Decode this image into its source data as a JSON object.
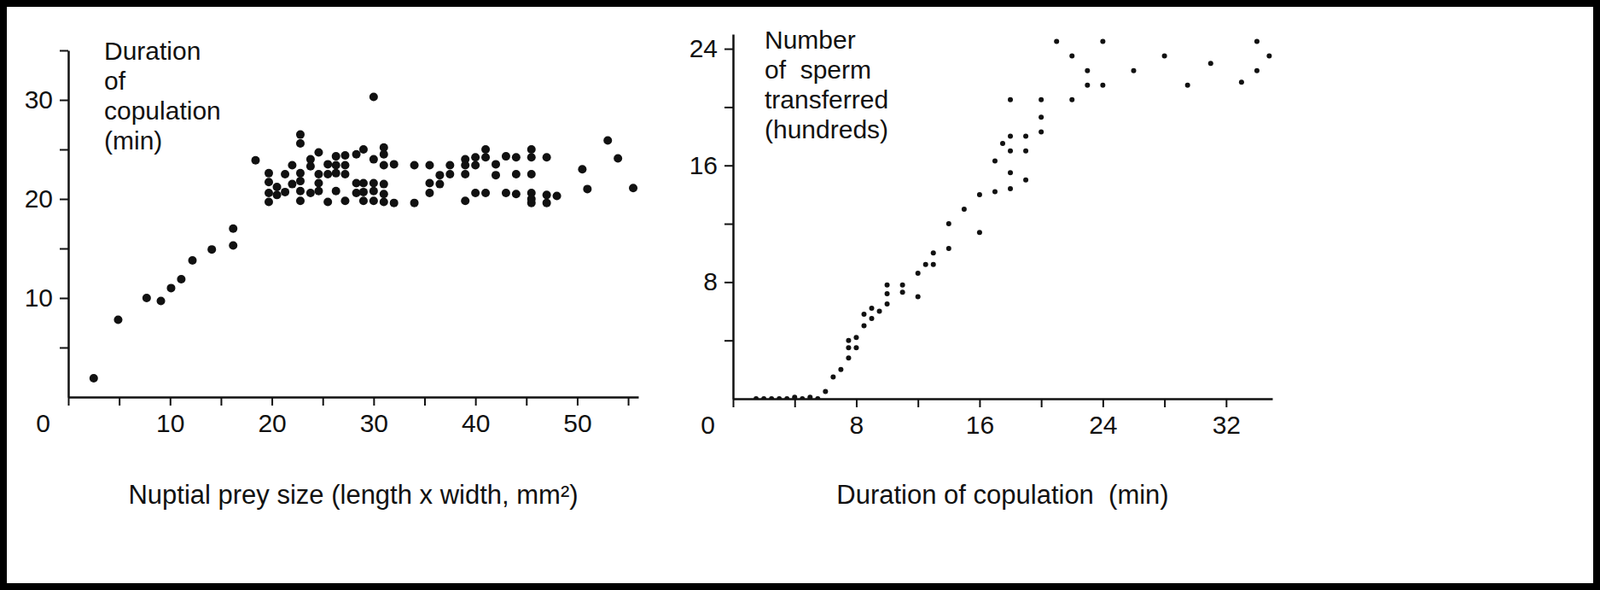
{
  "chart_data": [
    {
      "type": "scatter",
      "ylabel": [
        "Duration",
        "of",
        "copulation",
        "(min)"
      ],
      "xlabel": "Nuptial prey size (length x width, mm²)",
      "xlim": [
        0,
        56
      ],
      "xticks": [
        0,
        10,
        20,
        30,
        40,
        50
      ],
      "xminor": [
        5,
        15,
        25,
        35,
        45,
        55
      ],
      "ylim": [
        0,
        35
      ],
      "yticks": [
        10,
        20,
        30
      ],
      "yminor": [
        5,
        15,
        25,
        35
      ],
      "color": "#111111",
      "marker": "circle",
      "x": [
        2.5,
        4.9,
        7.7,
        9.1,
        10.1,
        11.1,
        12.2,
        14.1,
        16.2,
        16.2,
        18.4,
        19.7,
        19.7,
        19.7,
        19.7,
        20.5,
        20.5,
        21.3,
        21.3,
        22.0,
        22.0,
        22.8,
        22.8,
        22.8,
        22.8,
        22.8,
        22.8,
        23.8,
        23.8,
        23.8,
        24.6,
        24.6,
        24.6,
        24.6,
        25.5,
        25.5,
        25.5,
        26.3,
        26.3,
        26.3,
        26.3,
        27.2,
        27.2,
        27.2,
        27.2,
        28.3,
        28.3,
        28.3,
        29.0,
        29.0,
        29.0,
        29.0,
        30.0,
        30.0,
        30.0,
        30.0,
        30.0,
        31.0,
        31.0,
        31.0,
        31.0,
        31.0,
        31.0,
        32.0,
        32.0,
        34.0,
        34.0,
        35.5,
        35.5,
        35.5,
        36.5,
        36.5,
        37.5,
        37.5,
        39.0,
        39.0,
        39.0,
        39.0,
        40.0,
        40.0,
        40.0,
        41.0,
        41.0,
        41.0,
        42.0,
        42.0,
        43.0,
        43.0,
        44.0,
        44.0,
        44.0,
        45.5,
        45.5,
        45.5,
        45.5,
        45.5,
        45.5,
        47.0,
        47.0,
        47.0,
        48.0,
        50.5,
        51.0,
        53.0,
        54.0,
        55.5
      ],
      "values": [
        1.9,
        7.8,
        10.0,
        9.7,
        11.0,
        11.9,
        13.8,
        14.9,
        15.3,
        17.0,
        23.9,
        22.6,
        21.7,
        20.6,
        19.7,
        21.2,
        20.4,
        22.5,
        20.7,
        23.4,
        21.5,
        26.5,
        25.6,
        22.6,
        21.8,
        20.8,
        19.8,
        24.0,
        23.3,
        20.6,
        24.7,
        22.5,
        21.6,
        20.8,
        23.5,
        22.5,
        19.7,
        24.3,
        23.4,
        22.6,
        20.8,
        24.4,
        23.4,
        22.5,
        19.8,
        24.5,
        21.6,
        20.6,
        25.0,
        21.6,
        20.7,
        19.8,
        30.3,
        24.0,
        21.6,
        20.8,
        19.8,
        25.2,
        24.5,
        23.4,
        21.5,
        20.5,
        19.7,
        23.5,
        19.6,
        23.4,
        19.6,
        21.6,
        20.6,
        23.4,
        21.5,
        22.4,
        23.4,
        22.5,
        24.0,
        23.4,
        22.5,
        19.8,
        24.2,
        23.4,
        20.6,
        25.0,
        24.2,
        20.6,
        23.5,
        22.4,
        24.3,
        20.6,
        24.2,
        22.5,
        20.5,
        25.0,
        24.2,
        22.5,
        20.6,
        19.6,
        20.0,
        24.2,
        19.6,
        20.4,
        20.3,
        23.0,
        21.0,
        25.9,
        24.1,
        21.1
      ]
    },
    {
      "type": "scatter",
      "ylabel": [
        "Number",
        "of  sperm",
        "transferred",
        "(hundreds)"
      ],
      "xlabel": "Duration of copulation  (min)",
      "xlim": [
        0,
        35
      ],
      "xticks": [
        0,
        8,
        16,
        24,
        32
      ],
      "xminor": [
        4,
        12,
        20,
        28
      ],
      "ylim": [
        0,
        25
      ],
      "yticks": [
        8,
        16,
        24
      ],
      "yminor": [
        4,
        12,
        20
      ],
      "color": "#111111",
      "marker": "dot",
      "x": [
        1.5,
        2.0,
        2.5,
        3.0,
        3.5,
        4.0,
        4.5,
        5.0,
        5.5,
        6.0,
        6.5,
        7.0,
        7.5,
        7.5,
        7.5,
        8.0,
        8.0,
        8.5,
        8.5,
        9.0,
        9.0,
        9.5,
        10.0,
        10.0,
        10.0,
        11.0,
        11.0,
        12.0,
        12.0,
        12.5,
        13.0,
        13.0,
        14.0,
        14.0,
        15.0,
        16.0,
        16.0,
        17.0,
        17.0,
        17.5,
        18.0,
        18.0,
        18.0,
        18.0,
        18.0,
        19.0,
        19.0,
        19.0,
        20.0,
        20.0,
        20.0,
        21.0,
        22.0,
        22.0,
        23.0,
        23.0,
        24.0,
        24.0,
        26.0,
        28.0,
        29.5,
        31.0,
        33.0,
        34.0,
        34.0,
        34.8
      ],
      "values": [
        0.0,
        0.0,
        0.0,
        0.0,
        0.0,
        0.1,
        0.0,
        0.1,
        0.0,
        0.5,
        1.5,
        2.0,
        2.8,
        3.5,
        4.0,
        3.5,
        4.2,
        5.0,
        5.8,
        5.5,
        6.2,
        6.0,
        6.5,
        7.2,
        7.8,
        7.3,
        7.8,
        7.0,
        8.6,
        9.2,
        9.2,
        10.0,
        10.3,
        12.0,
        13.0,
        11.4,
        14.0,
        14.2,
        16.3,
        17.5,
        14.4,
        15.5,
        17.0,
        18.0,
        20.5,
        15.0,
        17.0,
        18.0,
        18.3,
        19.3,
        20.5,
        24.5,
        20.5,
        23.5,
        21.5,
        22.5,
        24.5,
        21.5,
        22.5,
        23.5,
        21.5,
        23.0,
        21.7,
        22.5,
        24.5,
        23.5
      ]
    }
  ]
}
